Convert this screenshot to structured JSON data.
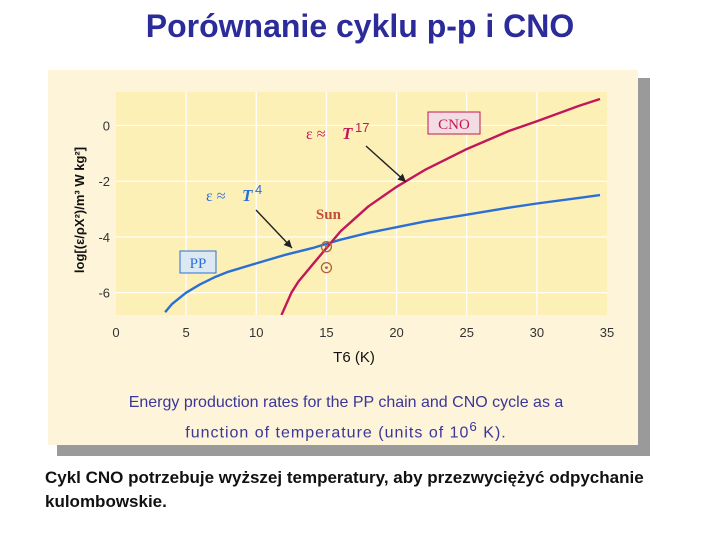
{
  "title": "Porównanie cyklu p-p i CNO",
  "caption": {
    "line1": "Energy production rates for the PP chain and CNO cycle as a",
    "line2a": "function of temperature (units of 10",
    "line2sup": "6",
    "line2b": " K)."
  },
  "bottom_text": "Cykl CNO potrzebuje wyższej temperatury, aby przezwyciężyć odpychanie kulombowskie.",
  "colors": {
    "pp": "#2a6fd6",
    "cno": "#c0185a",
    "plot_bg": "#fdf0b6",
    "card_bg": "#fdf4da",
    "axis_text": "#333333"
  },
  "chart_data": {
    "type": "line",
    "xlabel": "T6 (K)",
    "ylabel": "log[(ε/ρX²)/m³ W kg²]",
    "xlim": [
      0,
      35
    ],
    "ylim": [
      -6.8,
      1.2
    ],
    "xticks": [
      "0",
      "5",
      "10",
      "15",
      "20",
      "25",
      "30",
      "35"
    ],
    "yticks": [
      "0",
      "-2",
      "-4",
      "-6"
    ],
    "grid": true,
    "series": [
      {
        "name": "PP",
        "x": [
          3.5,
          4,
          5,
          6,
          7,
          8,
          10,
          12,
          14,
          15,
          16,
          18,
          20,
          22,
          25,
          28,
          30,
          33,
          34.5
        ],
        "y": [
          -6.7,
          -6.4,
          -6.0,
          -5.7,
          -5.45,
          -5.25,
          -4.95,
          -4.65,
          -4.4,
          -4.25,
          -4.1,
          -3.85,
          -3.65,
          -3.45,
          -3.2,
          -2.95,
          -2.8,
          -2.6,
          -2.5
        ]
      },
      {
        "name": "CNO",
        "x": [
          11.8,
          12.5,
          13,
          14,
          15,
          16,
          17,
          18,
          20,
          22,
          25,
          28,
          30,
          33,
          34.5
        ],
        "y": [
          -6.8,
          -6.0,
          -5.6,
          -5.0,
          -4.4,
          -3.8,
          -3.35,
          -2.9,
          -2.2,
          -1.6,
          -0.85,
          -0.2,
          0.15,
          0.7,
          0.95
        ]
      }
    ],
    "annotations": {
      "cno_box": "CNO",
      "pp_box": "PP",
      "sun_label": "Sun",
      "formula_cno": {
        "eps": "ε ≈",
        "T": "T",
        "exp": "17"
      },
      "formula_pp": {
        "eps": "ε ≈",
        "T": "T",
        "exp": "4"
      }
    },
    "sun_markers": [
      {
        "x": 15,
        "y": -4.35
      },
      {
        "x": 15,
        "y": -5.1
      }
    ]
  }
}
